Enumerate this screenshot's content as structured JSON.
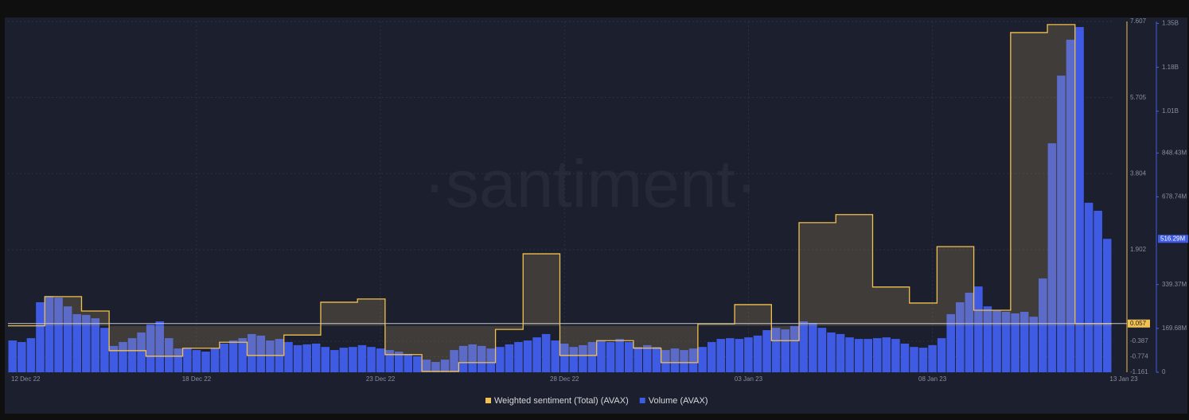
{
  "chart_data": {
    "type": "bar_step",
    "watermark": "·santiment·",
    "categories": [
      "12 Dec 22",
      null,
      null,
      null,
      null,
      null,
      null,
      null,
      null,
      null,
      null,
      null,
      null,
      null,
      null,
      null,
      null,
      null,
      null,
      null,
      "18 Dec 22",
      null,
      null,
      null,
      null,
      null,
      null,
      null,
      null,
      null,
      null,
      null,
      null,
      null,
      null,
      null,
      null,
      null,
      null,
      null,
      "23 Dec 22",
      null,
      null,
      null,
      null,
      null,
      null,
      null,
      null,
      null,
      null,
      null,
      null,
      null,
      null,
      null,
      null,
      null,
      null,
      null,
      "28 Dec 22",
      null,
      null,
      null,
      null,
      null,
      null,
      null,
      null,
      null,
      null,
      null,
      null,
      null,
      null,
      null,
      null,
      null,
      null,
      null,
      "03 Jan 23",
      null,
      null,
      null,
      null,
      null,
      null,
      null,
      null,
      null,
      null,
      null,
      null,
      null,
      null,
      null,
      null,
      null,
      null,
      null,
      "08 Jan 23",
      null,
      null,
      null,
      null,
      null,
      null,
      null,
      null,
      null,
      null,
      null,
      null,
      null,
      null,
      null,
      null,
      null,
      null,
      "13 Jan 23"
    ],
    "series": [
      {
        "name": "Weighted sentiment (Total) (AVAX)",
        "color": "#f2c14e",
        "style": "step",
        "values": [
          0,
          0,
          0,
          0,
          0.73,
          0.73,
          0.73,
          0.73,
          0.37,
          0.37,
          0.37,
          -0.62,
          -0.62,
          -0.62,
          -0.62,
          -0.76,
          -0.76,
          -0.76,
          -0.76,
          -0.56,
          -0.56,
          -0.56,
          -0.56,
          -0.41,
          -0.41,
          -0.41,
          -0.74,
          -0.74,
          -0.74,
          -0.74,
          -0.23,
          -0.23,
          -0.23,
          -0.23,
          0.59,
          0.59,
          0.59,
          0.59,
          0.67,
          0.67,
          0.67,
          -0.72,
          -0.72,
          -0.72,
          -0.72,
          -1.14,
          -1.14,
          -1.14,
          -1.14,
          -0.92,
          -0.92,
          -0.92,
          -0.92,
          -0.09,
          -0.09,
          -0.09,
          1.8,
          1.8,
          1.8,
          1.8,
          -0.74,
          -0.74,
          -0.74,
          -0.74,
          -0.37,
          -0.37,
          -0.37,
          -0.37,
          -0.56,
          -0.56,
          -0.56,
          -0.92,
          -0.92,
          -0.92,
          -0.92,
          0.05,
          0.05,
          0.05,
          0.05,
          0.53,
          0.53,
          0.53,
          0.53,
          -0.37,
          -0.37,
          -0.37,
          2.58,
          2.58,
          2.58,
          2.58,
          2.78,
          2.78,
          2.78,
          2.78,
          0.97,
          0.97,
          0.97,
          0.97,
          0.57,
          0.57,
          0.57,
          1.98,
          1.98,
          1.98,
          1.98,
          0.39,
          0.39,
          0.39,
          0.39,
          7.33,
          7.33,
          7.33,
          7.33,
          7.53,
          7.53,
          7.53,
          0.057,
          0.057,
          0.057,
          0.057
        ]
      },
      {
        "name": "Volume (AVAX)",
        "color": "#3f5be3",
        "axis": "y2",
        "style": "bar",
        "values": [
          123000000,
          117000000,
          132000000,
          271000000,
          295000000,
          289000000,
          255000000,
          225000000,
          222000000,
          209000000,
          172000000,
          102000000,
          117000000,
          132000000,
          154000000,
          185000000,
          197000000,
          132000000,
          92000000,
          95000000,
          86000000,
          80000000,
          92000000,
          111000000,
          123000000,
          132000000,
          148000000,
          142000000,
          123000000,
          129000000,
          117000000,
          105000000,
          108000000,
          111000000,
          98000000,
          86000000,
          95000000,
          98000000,
          105000000,
          98000000,
          92000000,
          86000000,
          80000000,
          71000000,
          62000000,
          49000000,
          40000000,
          49000000,
          86000000,
          102000000,
          108000000,
          102000000,
          92000000,
          98000000,
          108000000,
          117000000,
          123000000,
          135000000,
          148000000,
          123000000,
          111000000,
          98000000,
          105000000,
          117000000,
          123000000,
          117000000,
          129000000,
          117000000,
          98000000,
          105000000,
          98000000,
          86000000,
          92000000,
          86000000,
          92000000,
          98000000,
          117000000,
          129000000,
          132000000,
          129000000,
          135000000,
          142000000,
          163000000,
          172000000,
          166000000,
          179000000,
          197000000,
          191000000,
          172000000,
          154000000,
          148000000,
          135000000,
          129000000,
          129000000,
          132000000,
          135000000,
          129000000,
          111000000,
          98000000,
          95000000,
          105000000,
          132000000,
          225000000,
          271000000,
          308000000,
          332000000,
          255000000,
          240000000,
          234000000,
          228000000,
          234000000,
          215000000,
          363000000,
          886000000,
          1148000000,
          1287000000,
          1336000000,
          656000000,
          625000000,
          516290000
        ],
        "value_labels": [
          null,
          null,
          null,
          null,
          null,
          null,
          null,
          null,
          null,
          null,
          null,
          null,
          null,
          null,
          null,
          null,
          null,
          null,
          null,
          null,
          null,
          null,
          null,
          null,
          null,
          null,
          null,
          null,
          null,
          null,
          null,
          null,
          null,
          null,
          null,
          null,
          null,
          null,
          null,
          null,
          null,
          null,
          null,
          null,
          null,
          null,
          null,
          null,
          null,
          null,
          null,
          null,
          null,
          null,
          null,
          null,
          null,
          null,
          null,
          null,
          null,
          null,
          null,
          null,
          null,
          null,
          null,
          null,
          null,
          null,
          null,
          null,
          null,
          null,
          null,
          null,
          null,
          null,
          null,
          null,
          null,
          null,
          null,
          null,
          null,
          null,
          null,
          null,
          null,
          null,
          null,
          null,
          null,
          null,
          null,
          null,
          null,
          null,
          null,
          null,
          null,
          null,
          null,
          null,
          null,
          null,
          null,
          null,
          null,
          null,
          null,
          null,
          null,
          null,
          null,
          null,
          null,
          null,
          null,
          "516.29M"
        ]
      }
    ],
    "ylim": [
      -1.161,
      7.607
    ],
    "yticks": [
      -1.161,
      -0.774,
      -0.387,
      1.902,
      3.804,
      5.705,
      7.607
    ],
    "y2lim": [
      0,
      1357440000
    ],
    "y2ticks": [
      0,
      {
        "value": 169680000,
        "label": "169.68M"
      },
      {
        "value": 339370000,
        "label": "339.37M"
      },
      {
        "value": 678740000,
        "label": "678.74M"
      },
      {
        "value": 848430000,
        "label": "848.43M"
      },
      {
        "value": 1010000000,
        "label": "1.01B"
      },
      {
        "value": 1180000000,
        "label": "1.18B"
      },
      {
        "value": 1350000000,
        "label": "1.35B"
      }
    ],
    "grid": true,
    "legend": "bottom"
  }
}
